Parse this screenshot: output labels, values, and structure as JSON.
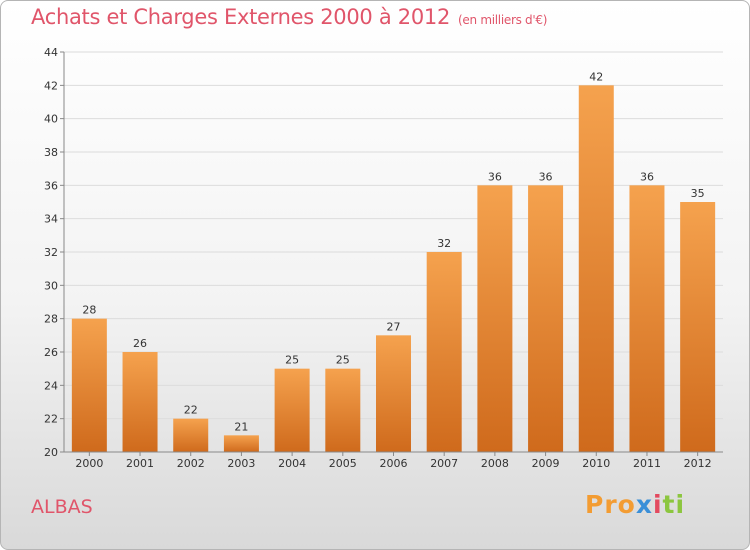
{
  "header": {
    "title": "Achats et Charges Externes 2000 à 2012",
    "unit": "(en milliers d'€)"
  },
  "footer": {
    "commune": "ALBAS",
    "logo_parts": [
      "Pro",
      "x",
      "i",
      "ti"
    ]
  },
  "colors": {
    "title": "#e0556a",
    "bar_top": "#f5a24e",
    "bar_bottom": "#cf6a1c"
  },
  "chart_data": {
    "type": "bar",
    "title": "Achats et Charges Externes 2000 à 2012",
    "ylabel": "",
    "xlabel": "",
    "categories": [
      "2000",
      "2001",
      "2002",
      "2003",
      "2004",
      "2005",
      "2006",
      "2007",
      "2008",
      "2009",
      "2010",
      "2011",
      "2012"
    ],
    "values": [
      28,
      26,
      22,
      21,
      25,
      25,
      27,
      32,
      36,
      36,
      42,
      36,
      35
    ],
    "ylim": [
      20,
      44
    ],
    "yticks": [
      20,
      22,
      24,
      26,
      28,
      30,
      32,
      34,
      36,
      38,
      40,
      42,
      44
    ],
    "grid": true
  }
}
